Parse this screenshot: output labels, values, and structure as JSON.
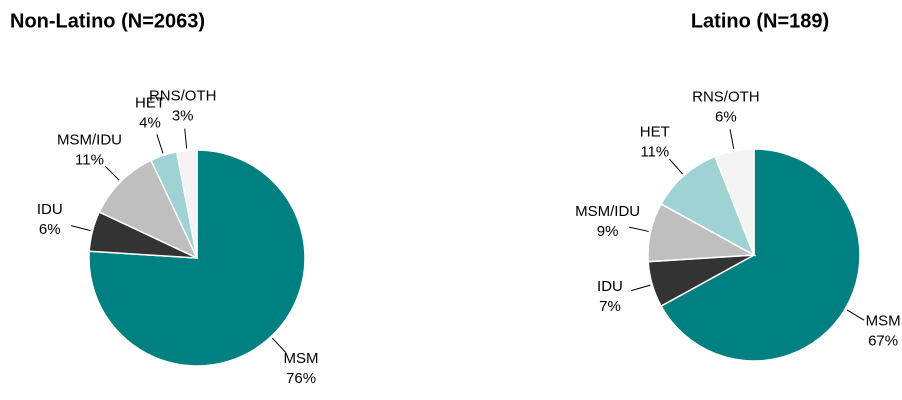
{
  "chart_data": [
    {
      "type": "pie",
      "title": "Non-Latino (N=2063)",
      "categories": [
        "MSM",
        "IDU",
        "MSM/IDU",
        "HET",
        "RNS/OTH"
      ],
      "values": [
        76,
        6,
        11,
        4,
        3
      ],
      "value_labels": [
        "76%",
        "6%",
        "11%",
        "4%",
        "3%"
      ],
      "colors": [
        "#008080",
        "#333333",
        "#bfbfbf",
        "#9fd3d3",
        "#f4f4f4"
      ]
    },
    {
      "type": "pie",
      "title": "Latino (N=189)",
      "categories": [
        "MSM",
        "IDU",
        "MSM/IDU",
        "HET",
        "RNS/OTH"
      ],
      "values": [
        67,
        7,
        9,
        11,
        6
      ],
      "value_labels": [
        "67%",
        "7%",
        "9%",
        "11%",
        "6%"
      ],
      "colors": [
        "#008080",
        "#333333",
        "#bfbfbf",
        "#9fd3d3",
        "#f4f4f4"
      ]
    }
  ]
}
